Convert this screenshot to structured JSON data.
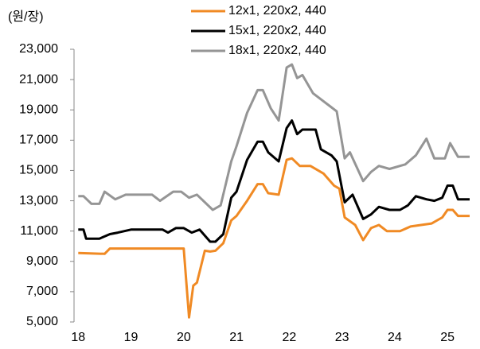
{
  "chart_data": {
    "type": "line",
    "y_label": "(원/장)",
    "xlim": [
      17.92,
      25.45
    ],
    "xticks": [
      18,
      19,
      20,
      21,
      22,
      23,
      24,
      25
    ],
    "ylim": [
      5000,
      23000
    ],
    "yticks": [
      {
        "value": 5000,
        "label": "5,000"
      },
      {
        "value": 7000,
        "label": "7,000"
      },
      {
        "value": 9000,
        "label": "9,000"
      },
      {
        "value": 11000,
        "label": "11,000"
      },
      {
        "value": 13000,
        "label": "13,000"
      },
      {
        "value": 15000,
        "label": "15,000"
      },
      {
        "value": 17000,
        "label": "17,000"
      },
      {
        "value": 19000,
        "label": "19,000"
      },
      {
        "value": 21000,
        "label": "21,000"
      },
      {
        "value": 23000,
        "label": "23,000"
      }
    ],
    "series": [
      {
        "name": "12x1, 220x2, 440",
        "color": "#f08a24",
        "x": [
          18.0,
          18.5,
          18.6,
          20.0,
          20.1,
          20.18,
          20.25,
          20.4,
          20.5,
          20.6,
          20.75,
          20.9,
          21.0,
          21.2,
          21.4,
          21.5,
          21.6,
          21.8,
          21.95,
          22.05,
          22.2,
          22.4,
          22.55,
          22.65,
          22.85,
          22.95,
          23.05,
          23.25,
          23.4,
          23.55,
          23.7,
          23.85,
          24.1,
          24.3,
          24.5,
          24.7,
          24.9,
          25.0,
          25.1,
          25.2,
          25.42
        ],
        "values": [
          9550,
          9500,
          9850,
          9850,
          5300,
          7400,
          7600,
          9700,
          9650,
          9700,
          10200,
          11700,
          12000,
          13000,
          14100,
          14100,
          13500,
          13400,
          15700,
          15800,
          15300,
          15300,
          15000,
          14800,
          14000,
          13800,
          11900,
          11400,
          10400,
          11200,
          11400,
          11000,
          11000,
          11300,
          11400,
          11500,
          11900,
          12400,
          12400,
          12000,
          12000
        ]
      },
      {
        "name": "15x1, 220x2, 440",
        "color": "#000000",
        "x": [
          18.0,
          18.1,
          18.15,
          18.4,
          18.6,
          18.75,
          19.0,
          19.6,
          19.7,
          19.85,
          20.0,
          20.15,
          20.3,
          20.5,
          20.6,
          20.75,
          20.9,
          21.0,
          21.2,
          21.4,
          21.5,
          21.6,
          21.8,
          21.95,
          22.05,
          22.15,
          22.25,
          22.5,
          22.6,
          22.8,
          22.9,
          23.05,
          23.2,
          23.4,
          23.55,
          23.7,
          23.9,
          24.1,
          24.25,
          24.4,
          24.6,
          24.75,
          24.9,
          25.0,
          25.1,
          25.2,
          25.42
        ],
        "values": [
          11100,
          11100,
          10500,
          10500,
          10800,
          10900,
          11100,
          11100,
          10900,
          11200,
          11200,
          10900,
          11100,
          10300,
          10300,
          10800,
          13200,
          13600,
          15700,
          16900,
          16900,
          16200,
          15600,
          17800,
          18300,
          17400,
          17700,
          17700,
          16400,
          16000,
          15600,
          12900,
          13400,
          11800,
          12100,
          12600,
          12400,
          12400,
          12700,
          13300,
          13100,
          13000,
          13200,
          14000,
          14000,
          13100,
          13100
        ]
      },
      {
        "name": "18x1, 220x2, 440",
        "color": "#959595",
        "x": [
          18.0,
          18.1,
          18.25,
          18.4,
          18.5,
          18.7,
          18.9,
          19.4,
          19.55,
          19.8,
          19.95,
          20.1,
          20.25,
          20.55,
          20.7,
          20.9,
          21.0,
          21.2,
          21.4,
          21.5,
          21.65,
          21.8,
          21.95,
          22.05,
          22.15,
          22.25,
          22.45,
          22.75,
          22.9,
          23.05,
          23.15,
          23.4,
          23.55,
          23.7,
          23.9,
          24.1,
          24.2,
          24.4,
          24.6,
          24.75,
          24.95,
          25.05,
          25.2,
          25.42
        ],
        "values": [
          13300,
          13300,
          12800,
          12800,
          13600,
          13100,
          13400,
          13400,
          13000,
          13600,
          13600,
          13200,
          13400,
          12400,
          12700,
          15600,
          16600,
          18800,
          20300,
          20300,
          19100,
          18300,
          21800,
          22000,
          21100,
          21300,
          20100,
          19300,
          18900,
          15800,
          16200,
          14300,
          14900,
          15300,
          15100,
          15300,
          15400,
          16000,
          17100,
          15800,
          15800,
          16800,
          15900,
          15900
        ]
      }
    ]
  }
}
